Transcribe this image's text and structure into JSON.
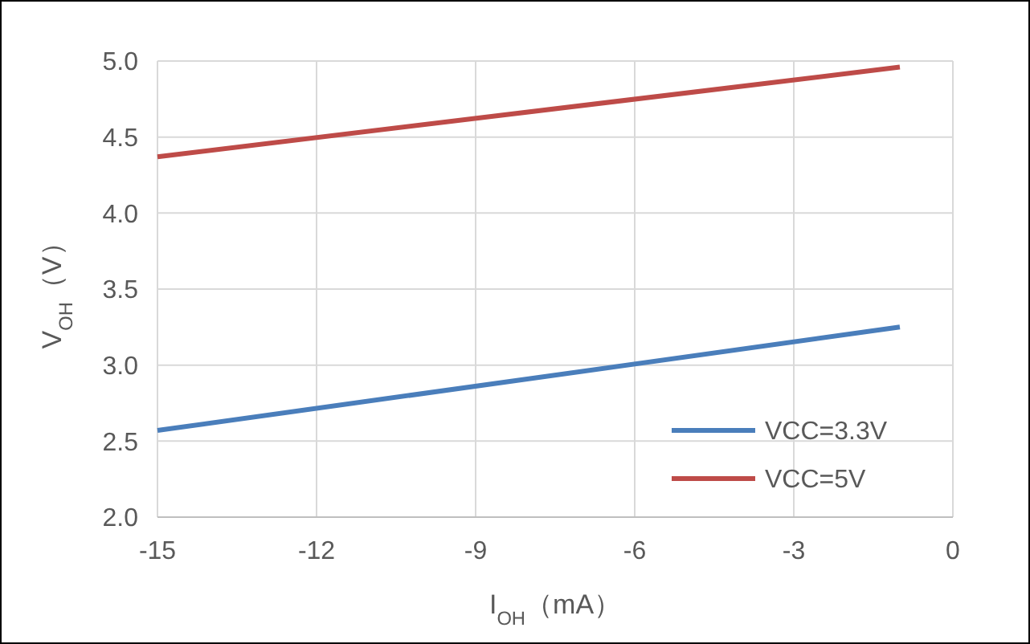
{
  "chart_data": {
    "type": "line",
    "xlabel": "I$_{OH}$（mA）",
    "ylabel": "V$_{OH}$（V）",
    "xlim": [
      -15,
      0
    ],
    "xticks": [
      -15,
      -12,
      -9,
      -6,
      -3,
      0
    ],
    "ylim": [
      2,
      5
    ],
    "yticks": [
      {
        "value": 2,
        "label": "2.0"
      },
      {
        "value": 2.5,
        "label": "2.5"
      },
      {
        "value": 3,
        "label": "3.0"
      },
      {
        "value": 3.5,
        "label": "3.5"
      },
      {
        "value": 4,
        "label": "4.0"
      },
      {
        "value": 4.5,
        "label": "4.5"
      },
      {
        "value": 5,
        "label": "5.0"
      }
    ],
    "x": [
      -15,
      -1
    ],
    "grid": true,
    "legend": "bottom right",
    "marker": "none",
    "line_style": "solid",
    "series": [
      {
        "name": "VCC=3.3V",
        "color": "#4a7ebb",
        "values": [
          2.57,
          3.25
        ]
      },
      {
        "name": "VCC=5V",
        "color": "#be4b48",
        "values": [
          4.37,
          4.96
        ]
      }
    ]
  }
}
